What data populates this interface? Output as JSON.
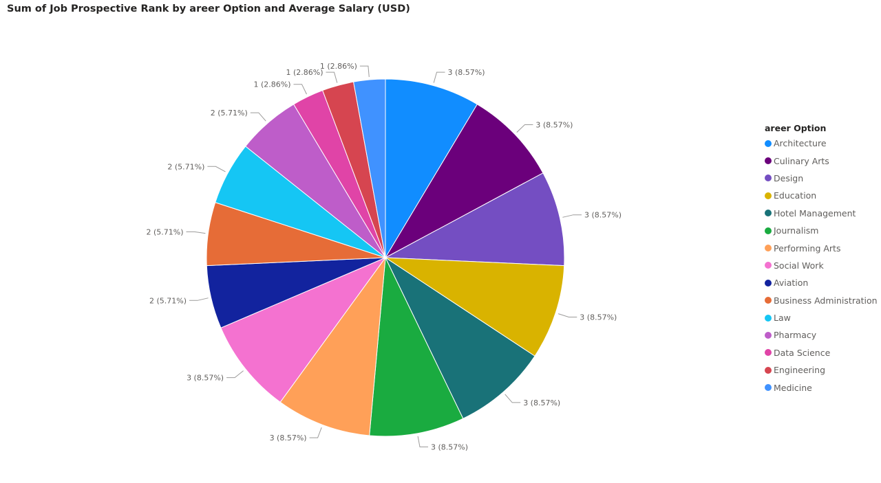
{
  "chart_data": {
    "type": "pie",
    "title": "Sum of Job Prospective Rank by areer Option and Average Salary (USD)",
    "legend_title": "areer Option",
    "legend_position": "right",
    "slices": [
      {
        "label": "Architecture",
        "value": 3,
        "percent_label": "3 (8.57%)",
        "color": "#118DFF"
      },
      {
        "label": "Culinary Arts",
        "value": 3,
        "percent_label": "3 (8.57%)",
        "color": "#6B007B"
      },
      {
        "label": "Design",
        "value": 3,
        "percent_label": "3 (8.57%)",
        "color": "#744EC2"
      },
      {
        "label": "Education",
        "value": 3,
        "percent_label": "3 (8.57%)",
        "color": "#D9B300"
      },
      {
        "label": "Hotel Management",
        "value": 3,
        "percent_label": "3 (8.57%)",
        "color": "#197278"
      },
      {
        "label": "Journalism",
        "value": 3,
        "percent_label": "3 (8.57%)",
        "color": "#1AAB40"
      },
      {
        "label": "Performing Arts",
        "value": 3,
        "percent_label": "3 (8.57%)",
        "color": "#FFA058"
      },
      {
        "label": "Social Work",
        "value": 3,
        "percent_label": "3 (8.57%)",
        "color": "#F472D0"
      },
      {
        "label": "Aviation",
        "value": 2,
        "percent_label": "2 (5.71%)",
        "color": "#12239E"
      },
      {
        "label": "Business Administration",
        "value": 2,
        "percent_label": "2 (5.71%)",
        "color": "#E66C37"
      },
      {
        "label": "Law",
        "value": 2,
        "percent_label": "2 (5.71%)",
        "color": "#15C6F4"
      },
      {
        "label": "Pharmacy",
        "value": 2,
        "percent_label": "2 (5.71%)",
        "color": "#BE5DC9"
      },
      {
        "label": "Data Science",
        "value": 1,
        "percent_label": "1 (2.86%)",
        "color": "#E044A7"
      },
      {
        "label": "Engineering",
        "value": 1,
        "percent_label": "1 (2.86%)",
        "color": "#D64550"
      },
      {
        "label": "Medicine",
        "value": 1,
        "percent_label": "1 (2.86%)",
        "color": "#4092FF"
      }
    ]
  }
}
